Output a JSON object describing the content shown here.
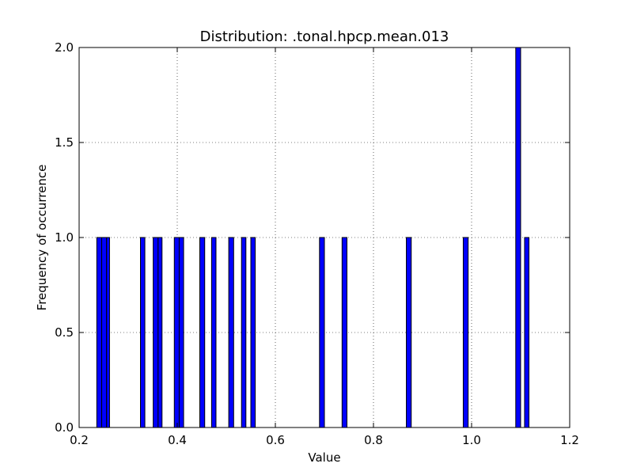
{
  "chart_data": {
    "type": "bar",
    "title": "Distribution: .tonal.hpcp.mean.013",
    "xlabel": "Value",
    "ylabel": "Frequency of occurrence",
    "xlim": [
      0.2,
      1.2
    ],
    "ylim": [
      0.0,
      2.0
    ],
    "xticks": [
      "0.2",
      "0.4",
      "0.6",
      "0.8",
      "1.0",
      "1.2"
    ],
    "yticks": [
      "0.0",
      "0.5",
      "1.0",
      "1.5",
      "2.0"
    ],
    "grid": true,
    "bar_color": "#0000ff",
    "bars": [
      {
        "x0": 0.236,
        "x1": 0.246,
        "value": 1
      },
      {
        "x0": 0.246,
        "x1": 0.256,
        "value": 1
      },
      {
        "x0": 0.256,
        "x1": 0.262,
        "value": 1
      },
      {
        "x0": 0.325,
        "x1": 0.334,
        "value": 1
      },
      {
        "x0": 0.351,
        "x1": 0.361,
        "value": 1
      },
      {
        "x0": 0.361,
        "x1": 0.369,
        "value": 1
      },
      {
        "x0": 0.394,
        "x1": 0.404,
        "value": 1
      },
      {
        "x0": 0.404,
        "x1": 0.413,
        "value": 1
      },
      {
        "x0": 0.446,
        "x1": 0.456,
        "value": 1
      },
      {
        "x0": 0.47,
        "x1": 0.479,
        "value": 1
      },
      {
        "x0": 0.505,
        "x1": 0.515,
        "value": 1
      },
      {
        "x0": 0.531,
        "x1": 0.54,
        "value": 1
      },
      {
        "x0": 0.55,
        "x1": 0.559,
        "value": 1
      },
      {
        "x0": 0.69,
        "x1": 0.7,
        "value": 1
      },
      {
        "x0": 0.736,
        "x1": 0.746,
        "value": 1
      },
      {
        "x0": 0.867,
        "x1": 0.877,
        "value": 1
      },
      {
        "x0": 0.983,
        "x1": 0.993,
        "value": 1
      },
      {
        "x0": 1.09,
        "x1": 1.1,
        "value": 2
      },
      {
        "x0": 1.108,
        "x1": 1.117,
        "value": 1
      }
    ]
  }
}
